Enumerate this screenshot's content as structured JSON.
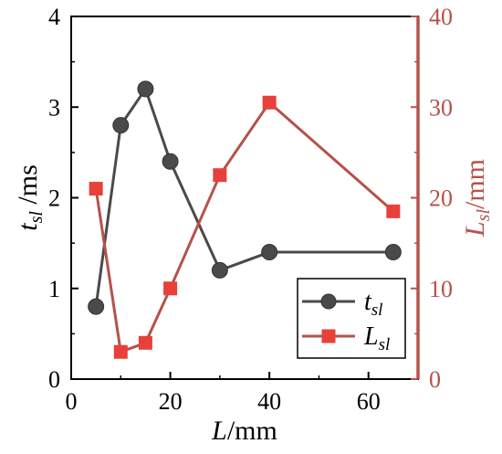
{
  "chart_data": {
    "type": "line",
    "xlabel": {
      "italic": "L",
      "rest": "/mm"
    },
    "ylabel_left": {
      "italic": "t",
      "sub": "sl",
      "rest": " /ms"
    },
    "ylabel_right": {
      "italic": "L",
      "sub": "sl",
      "rest": "/mm"
    },
    "xlim": [
      0,
      70
    ],
    "ylim_left": [
      0,
      4
    ],
    "ylim_right": [
      0,
      40
    ],
    "x_ticks": [
      0,
      20,
      40,
      60
    ],
    "y_left_ticks": [
      0,
      1,
      2,
      3,
      4
    ],
    "y_right_ticks": [
      0,
      10,
      20,
      30,
      40
    ],
    "series": [
      {
        "name": {
          "italic": "t",
          "sub": "sl"
        },
        "axis": "left",
        "marker": "circle",
        "color": "#4a4a4a",
        "x": [
          5,
          10,
          15,
          20,
          30,
          40,
          65
        ],
        "y": [
          0.8,
          2.8,
          3.2,
          2.4,
          1.2,
          1.4,
          1.4
        ]
      },
      {
        "name": {
          "italic": "L",
          "sub": "sl"
        },
        "axis": "right",
        "marker": "square",
        "color": "#e8403a",
        "line_color": "#b5524a",
        "x": [
          5,
          10,
          15,
          20,
          30,
          40,
          65
        ],
        "y": [
          21,
          3,
          4,
          10,
          22.5,
          30.5,
          18.5
        ]
      }
    ],
    "axis_colors": {
      "left": "#000000",
      "right": "#b5524a"
    },
    "legend": "bottom-right",
    "grid": false
  }
}
